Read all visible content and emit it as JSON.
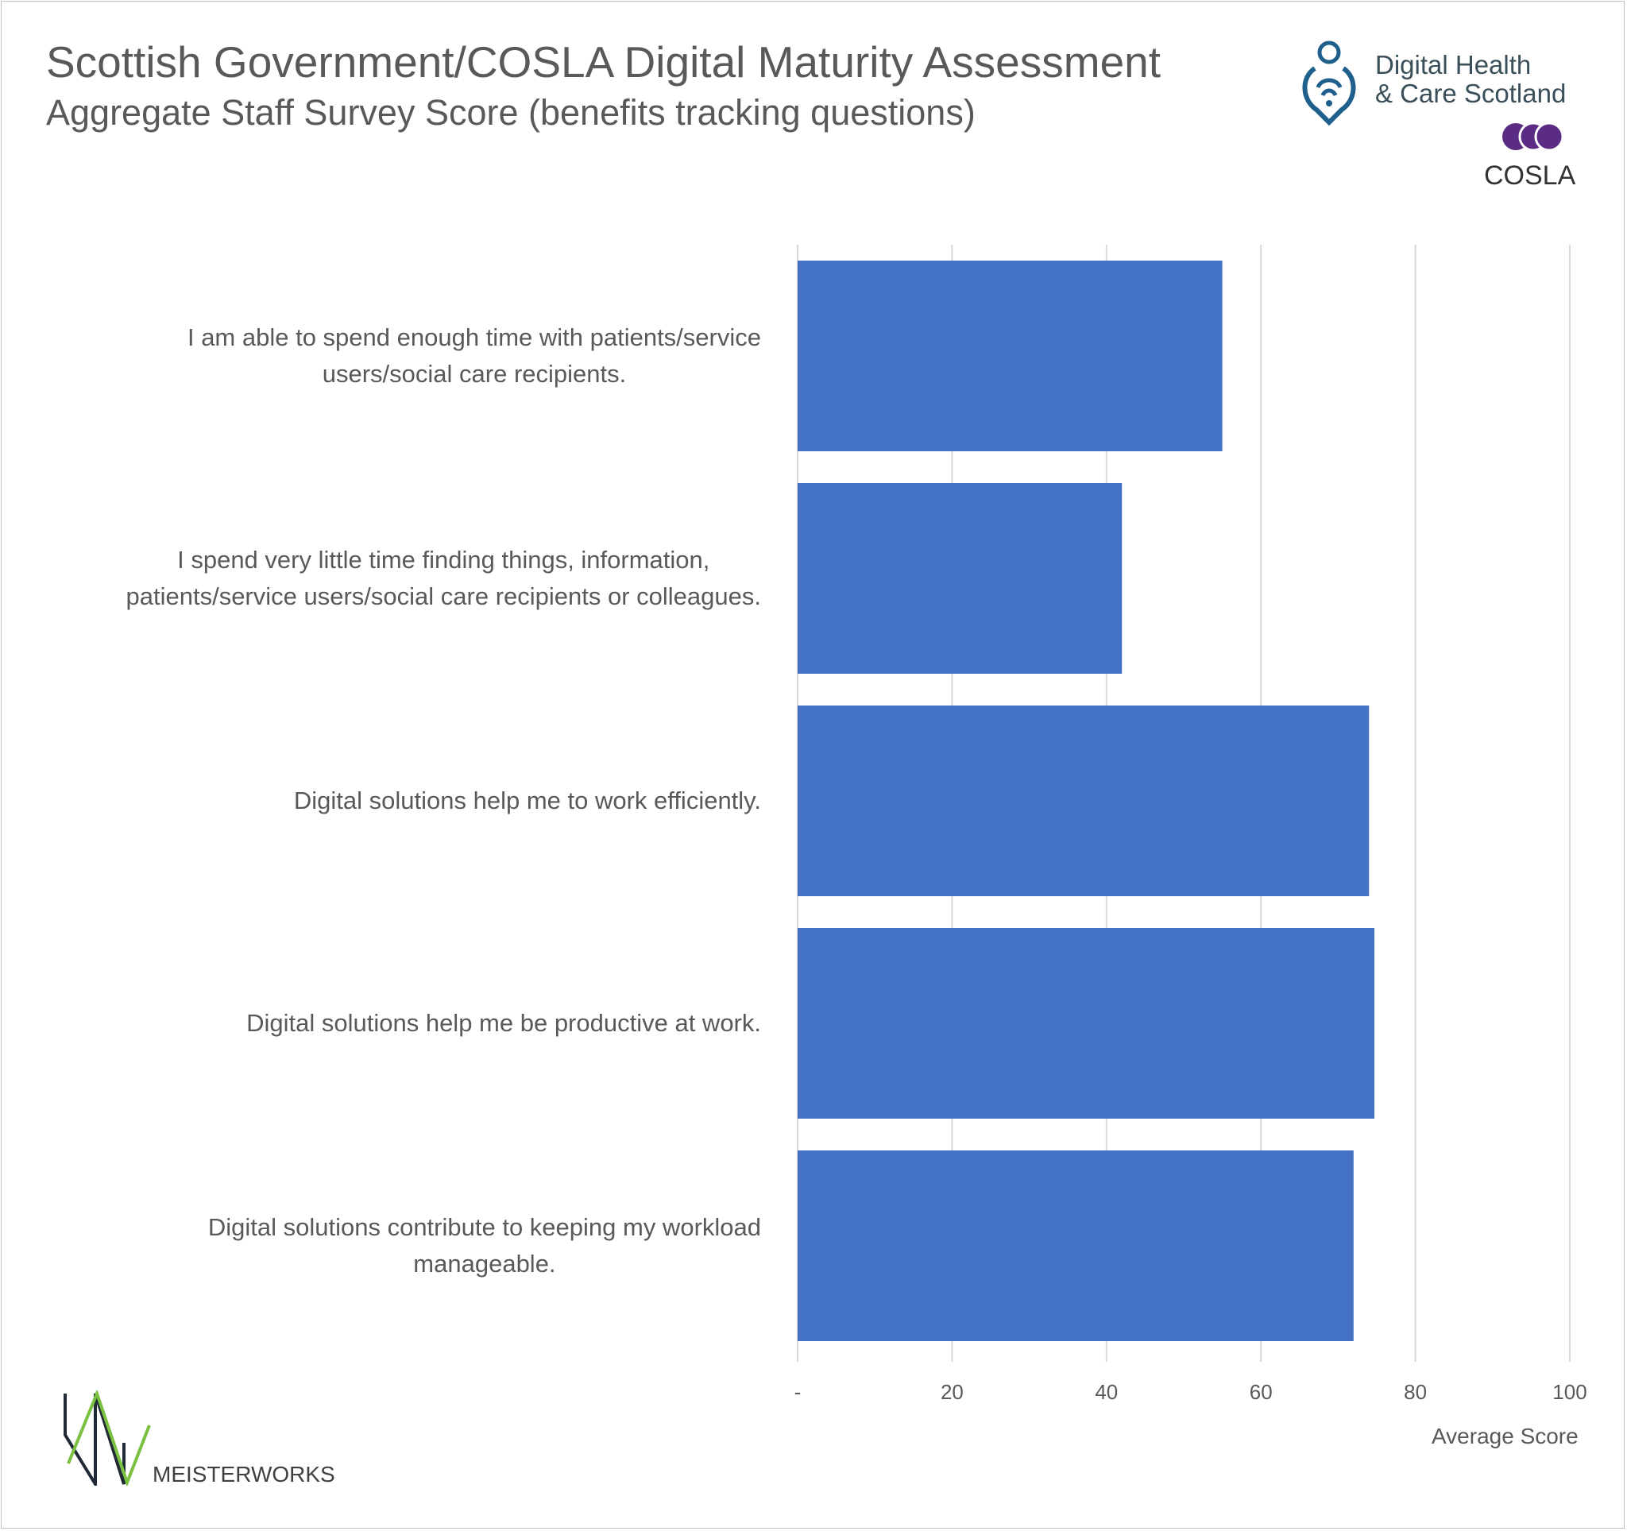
{
  "header": {
    "title": "Scottish Government/COSLA Digital Maturity Assessment",
    "subtitle": "Aggregate Staff Survey Score (benefits tracking questions)"
  },
  "logos": {
    "dhcs_line1": "Digital Health",
    "dhcs_line2": "& Care Scotland",
    "cosla": "COSLA",
    "meisterworks": "MEISTERWORKS"
  },
  "colors": {
    "bar": "#4472c4",
    "grid": "#d9d9d9",
    "text": "#595959",
    "cosla_purple": "#5b2c83",
    "dhcs_blue": "#1f5f8b",
    "mw_green": "#7ac142",
    "mw_dark": "#1f2a36"
  },
  "chart_data": {
    "type": "bar",
    "orientation": "horizontal",
    "categories": [
      [
        "I am able to spend enough time with patients/service",
        "users/social care recipients."
      ],
      [
        "I spend very little time finding things, information,",
        "patients/service users/social care recipients or colleagues."
      ],
      [
        "Digital solutions help me to work efficiently."
      ],
      [
        "Digital solutions help me be productive at work."
      ],
      [
        "Digital solutions contribute to keeping my workload",
        "manageable."
      ]
    ],
    "values": [
      55,
      42,
      74,
      74.7,
      72
    ],
    "xlabel": "Average Score",
    "xlim": [
      0,
      100
    ],
    "xticks": [
      "-",
      "20",
      "40",
      "60",
      "80",
      "100"
    ],
    "grid": true
  }
}
